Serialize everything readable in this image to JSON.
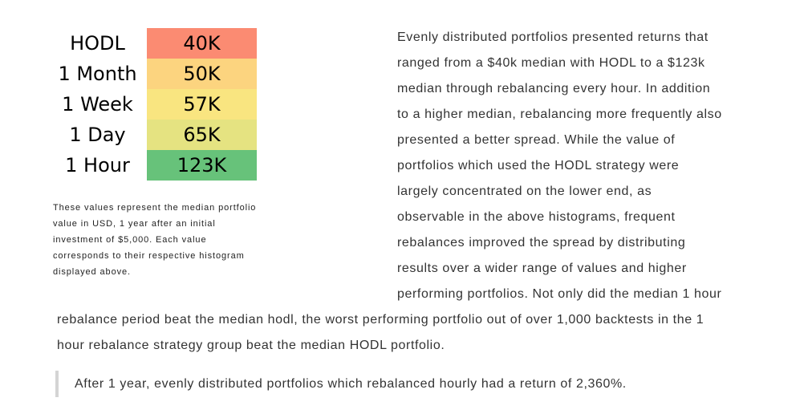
{
  "table": {
    "rows": [
      {
        "label": "HODL",
        "value": "40K",
        "color": "#fb8b72"
      },
      {
        "label": "1 Month",
        "value": "50K",
        "color": "#fcd47f"
      },
      {
        "label": "1 Week",
        "value": "57K",
        "color": "#f9e580"
      },
      {
        "label": "1 Day",
        "value": "65K",
        "color": "#e5e381"
      },
      {
        "label": "1 Hour",
        "value": "123K",
        "color": "#67c27a"
      }
    ]
  },
  "caption": "These values represent the median portfolio value in USD, 1 year after an initial investment of $5,000. Each value corresponds to their respective histogram displayed above.",
  "paragraph": "Evenly distributed portfolios presented returns that ranged from a $40k median with HODL to a $123k median through rebalancing every hour. In addition to a higher median, rebalancing more frequently also presented a better spread. While the value of portfolios which used the HODL strategy were largely concentrated on the lower end, as observable in the above histograms, frequent rebalances improved the spread by distributing results over a wider range of values and higher performing portfolios. Not only did the median 1 hour rebalance period beat the median hodl, the worst performing portfolio out of over 1,000 backtests in the 1 hour rebalance strategy group beat the median HODL portfolio.",
  "quote": "After 1 year, evenly distributed portfolios which rebalanced hourly had a return of 2,360%."
}
